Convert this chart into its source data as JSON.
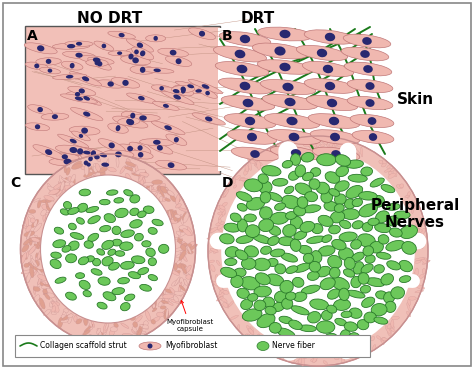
{
  "title_nodrt": "NO DRT",
  "title_drt": "DRT",
  "label_skin": "Skin",
  "label_peripheral": "Peripheral\nNerves",
  "label_A": "A",
  "label_B": "B",
  "label_C": "C",
  "label_D": "D",
  "myofibroblast_capsule_label": "Myofibroblast\ncapsule",
  "legend_items": [
    "Collagen scaffold strut",
    "Myofibroblast",
    "Nerve fiber"
  ],
  "bg_color": "#ffffff",
  "panel_bg_pink": "#f2c0b8",
  "cell_pink": "#f0b8b0",
  "cell_outline": "#c07878",
  "nucleus_blue": "#282870",
  "collagen_green": "#1a7a1a",
  "nerve_green": "#5ab84a",
  "nerve_outline": "#2a7a2a",
  "nerve_fill": "#6cc85a",
  "capsule_pink_light": "#f0c0b8",
  "capsule_pink_dark": "#c89090",
  "border_color": "#888888"
}
